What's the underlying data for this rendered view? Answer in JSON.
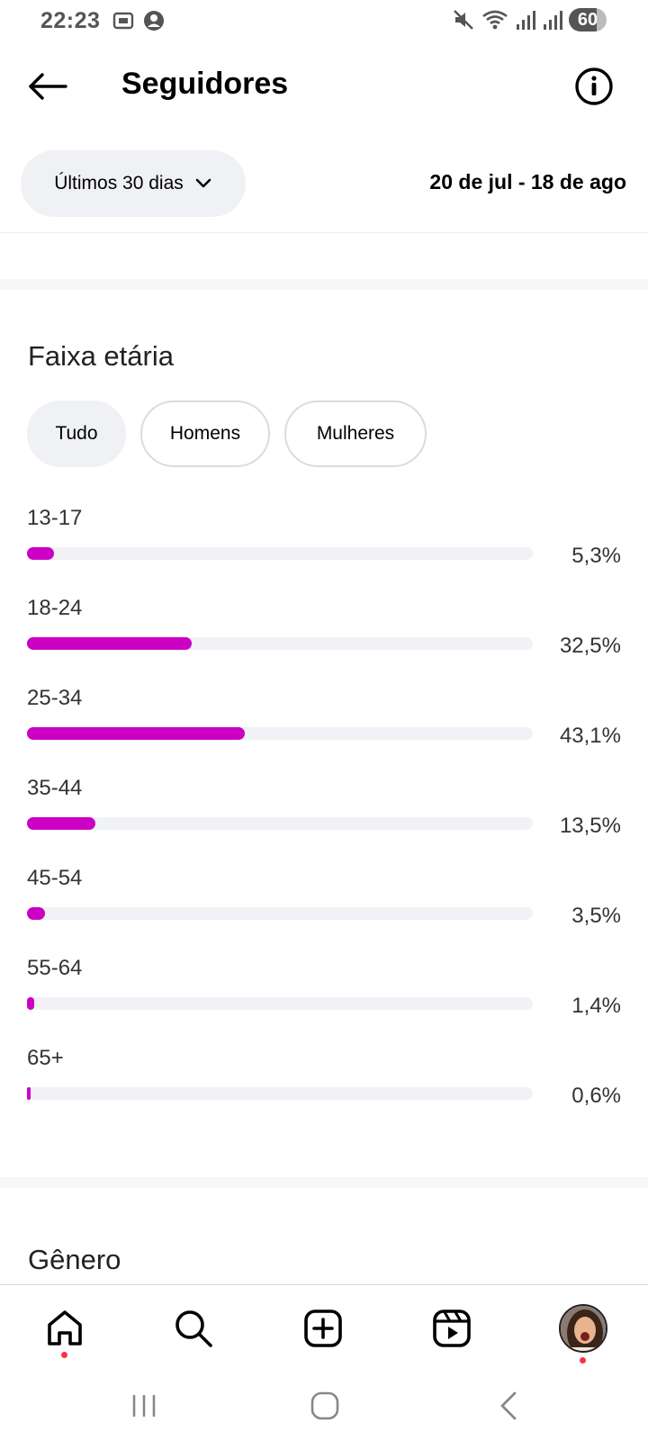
{
  "status_bar": {
    "time": "22:23",
    "battery": "60"
  },
  "header": {
    "title": "Seguidores"
  },
  "filter": {
    "period_label": "Últimos 30 dias",
    "date_range": "20 de jul - 18 de ago"
  },
  "age_section": {
    "title": "Faixa etária",
    "tabs": [
      {
        "label": "Tudo",
        "selected": true
      },
      {
        "label": "Homens",
        "selected": false
      },
      {
        "label": "Mulheres",
        "selected": false
      }
    ],
    "rows": [
      {
        "range": "13-17",
        "percent_label": "5,3%",
        "percent": 5.3
      },
      {
        "range": "18-24",
        "percent_label": "32,5%",
        "percent": 32.5
      },
      {
        "range": "25-34",
        "percent_label": "43,1%",
        "percent": 43.1
      },
      {
        "range": "35-44",
        "percent_label": "13,5%",
        "percent": 13.5
      },
      {
        "range": "45-54",
        "percent_label": "3,5%",
        "percent": 3.5
      },
      {
        "range": "55-64",
        "percent_label": "1,4%",
        "percent": 1.4
      },
      {
        "range": "65+",
        "percent_label": "0,6%",
        "percent": 0.6
      }
    ]
  },
  "gender_section": {
    "title": "Gênero"
  },
  "colors": {
    "bar_fill": "#cc00c4",
    "bar_track": "#f1f2f5",
    "notification_dot": "#ff3040"
  },
  "bottom_nav": {
    "items": [
      {
        "icon": "home-icon",
        "active": true,
        "has_dot": true
      },
      {
        "icon": "search-icon"
      },
      {
        "icon": "create-post-icon"
      },
      {
        "icon": "reels-icon"
      },
      {
        "icon": "profile-avatar",
        "has_dot": true
      }
    ]
  },
  "system_nav": {
    "items": [
      "recent-apps-icon",
      "home-button-icon",
      "back-nav-icon"
    ]
  }
}
